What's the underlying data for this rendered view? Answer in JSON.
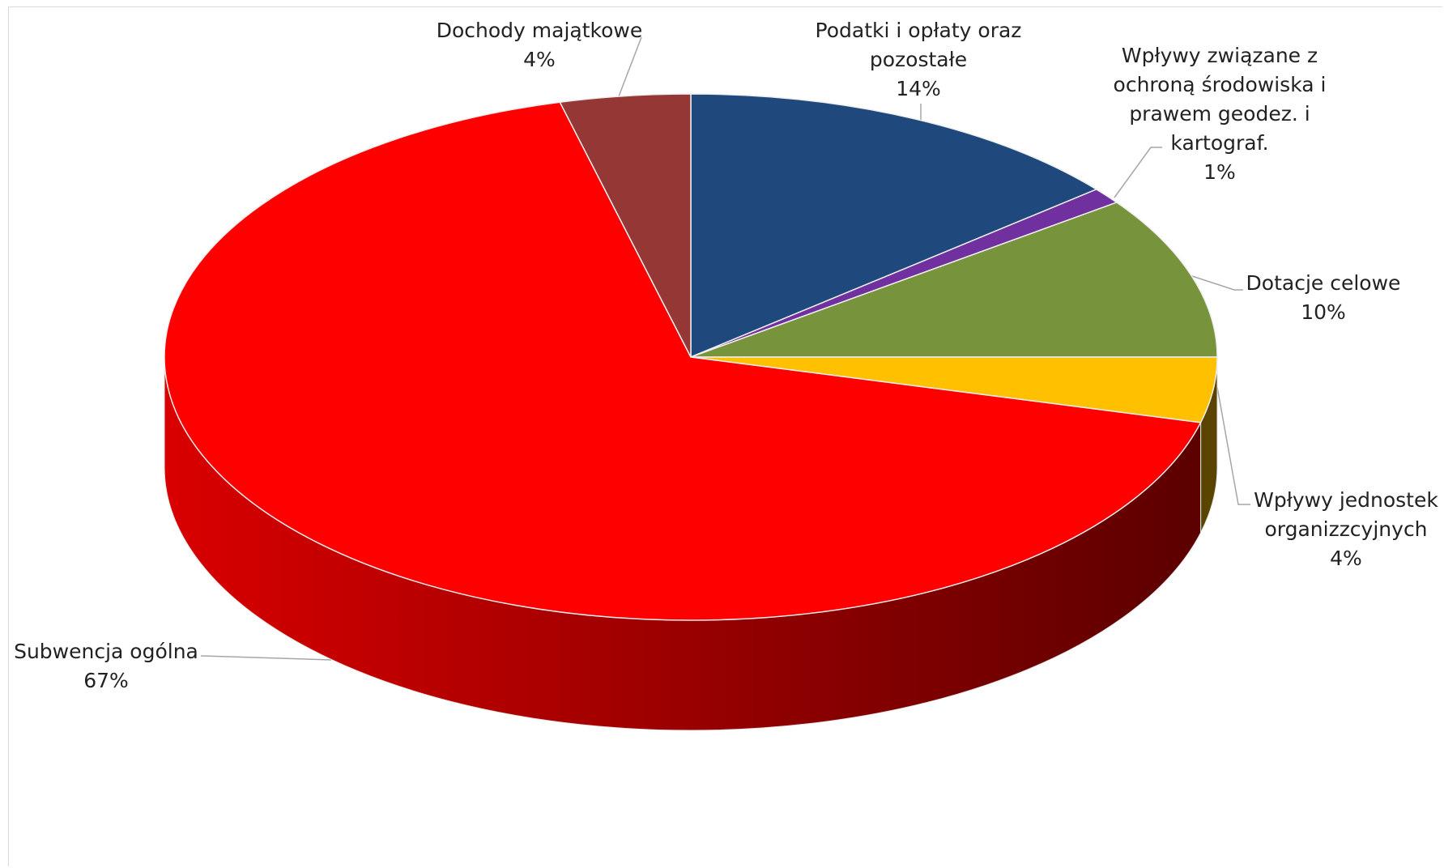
{
  "chart_data": {
    "type": "pie3d",
    "categories": [
      "Podatki i opłaty oraz pozostałe",
      "Wpływy związane z ochroną środowiska i prawem geodez. i kartograf.",
      "Dotacje celowe",
      "Wpływy jednostek organizzcyjnych",
      "Subwencja ogólna",
      "Dochody majątkowe"
    ],
    "values": [
      14,
      1,
      10,
      4,
      67,
      4
    ],
    "value_labels": [
      "14%",
      "1%",
      "10%",
      "4%",
      "67%",
      "4%"
    ],
    "colors": [
      "#1f497d",
      "#7030a0",
      "#77933c",
      "#ffc000",
      "#ff0000",
      "#953735"
    ]
  }
}
